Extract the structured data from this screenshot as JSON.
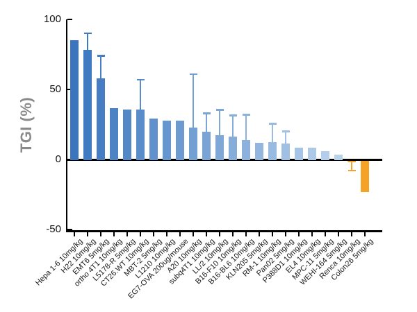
{
  "figure": {
    "background": "#ffffff",
    "axis_color": "#000000",
    "ylabel_color": "#8a8a8a",
    "orange_accent": "#F5A228"
  },
  "chart_data": {
    "type": "bar",
    "title": "",
    "xlabel": "",
    "ylabel": "TGI (%)",
    "ylim": [
      -50,
      100
    ],
    "yticks": [
      100,
      50,
      0,
      -50
    ],
    "grid": false,
    "legend": false,
    "baseline_at_zero": true,
    "categories": [
      "Hepa 1-6 10mg/kg",
      "H22 10mg/kg",
      "EMT6 5mg/kg",
      "ortho 4T1 10mg/kg",
      "L5178-R 5mg/kg",
      "CT26.WT 10mg/kg",
      "MBT-2 5mg/kg",
      "L1210 10mg/kg",
      "EG7-OVA 200ug/mouse",
      "A20 10mg/kg",
      "subq4T1 10mg/kg",
      "LL/2 10mg/kg",
      "B16-F10 10mg/kg",
      "B16-BL6 10mg/kg",
      "KLN205 5mg/kg",
      "RM-1 10mg/kg",
      "Pan02 5mg/kg",
      "P388D1 10mg/kg",
      "EL4 10mg/kg",
      "MPC-11 5mg/kg",
      "WEHI-164 5mg/kg",
      "Renca 10mg/kg",
      "Colon26 5mg/kg"
    ],
    "values": [
      85,
      78,
      58,
      36.5,
      35.5,
      35.5,
      29,
      27.5,
      27.5,
      23,
      20,
      17.5,
      16.5,
      14,
      12,
      12.5,
      11.5,
      8.5,
      8.5,
      6,
      3.5,
      -1.5,
      -23.5
    ],
    "errors_high": [
      null,
      90,
      74,
      null,
      null,
      57,
      null,
      null,
      null,
      61,
      33,
      35.5,
      31.5,
      32,
      null,
      25.5,
      20,
      null,
      null,
      null,
      null,
      null,
      null
    ],
    "errors_low": [
      null,
      null,
      null,
      null,
      null,
      null,
      null,
      null,
      null,
      null,
      null,
      null,
      null,
      null,
      null,
      null,
      null,
      null,
      null,
      null,
      null,
      -8,
      null
    ],
    "bar_colors": [
      "#3A75BE",
      "#407AC0",
      "#477EC3",
      "#4D83C5",
      "#5388C7",
      "#5A8CCA",
      "#6091CC",
      "#6696CE",
      "#6D9AD0",
      "#73A0D3",
      "#7AA4D5",
      "#80A8D7",
      "#86ADDA",
      "#8DB1DC",
      "#93B6DE",
      "#99BBE1",
      "#A0BFE3",
      "#A6C4E5",
      "#ACC9E7",
      "#B3CDEA",
      "#B9D2EC",
      "#F5A228",
      "#F5A228"
    ]
  }
}
